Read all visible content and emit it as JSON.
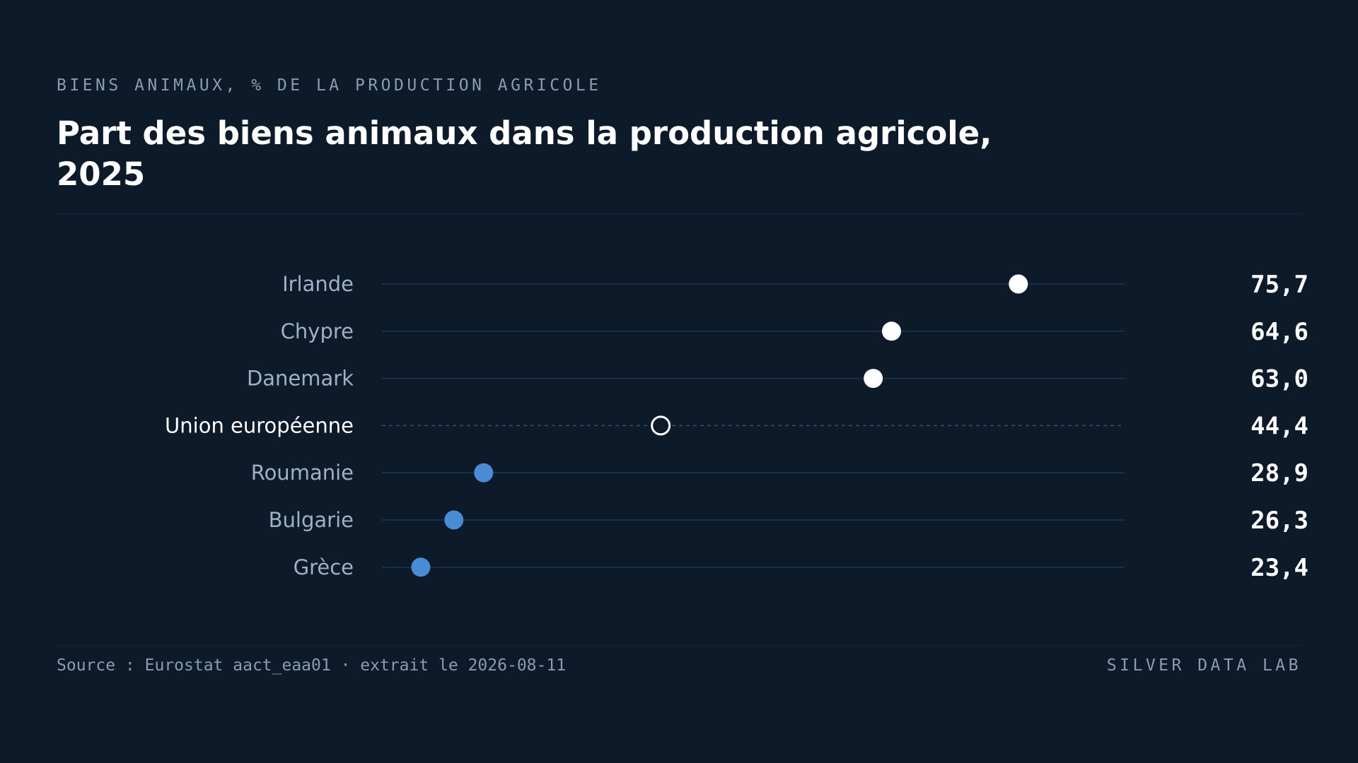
{
  "header": {
    "eyebrow": "BIENS ANIMAUX, % DE LA PRODUCTION AGRICOLE",
    "title": "Part des biens animaux dans la production agricole, 2025"
  },
  "footer": {
    "source": "Source : Eurostat aact_eaa01 · extrait le 2026-08-11",
    "brand": "SILVER DATA LAB"
  },
  "colors": {
    "background": "#0d1a2a",
    "high": "#ffffff",
    "low": "#4a8bd6",
    "reference": "#ffffff",
    "track": "#1f3650",
    "label": "#9fb0c8",
    "label_reference": "#ffffff",
    "value": "#ffffff"
  },
  "chart_data": {
    "type": "dot",
    "xlim": [
      20,
      85
    ],
    "grid": false,
    "legend": "none",
    "rows": [
      {
        "label": "Irlande",
        "value": 75.7,
        "display": "75,7",
        "group": "high"
      },
      {
        "label": "Chypre",
        "value": 64.6,
        "display": "64,6",
        "group": "high"
      },
      {
        "label": "Danemark",
        "value": 63.0,
        "display": "63,0",
        "group": "high"
      },
      {
        "label": "Union européenne",
        "value": 44.4,
        "display": "44,4",
        "group": "reference"
      },
      {
        "label": "Roumanie",
        "value": 28.9,
        "display": "28,9",
        "group": "low"
      },
      {
        "label": "Bulgarie",
        "value": 26.3,
        "display": "26,3",
        "group": "low"
      },
      {
        "label": "Grèce",
        "value": 23.4,
        "display": "23,4",
        "group": "low"
      }
    ]
  }
}
